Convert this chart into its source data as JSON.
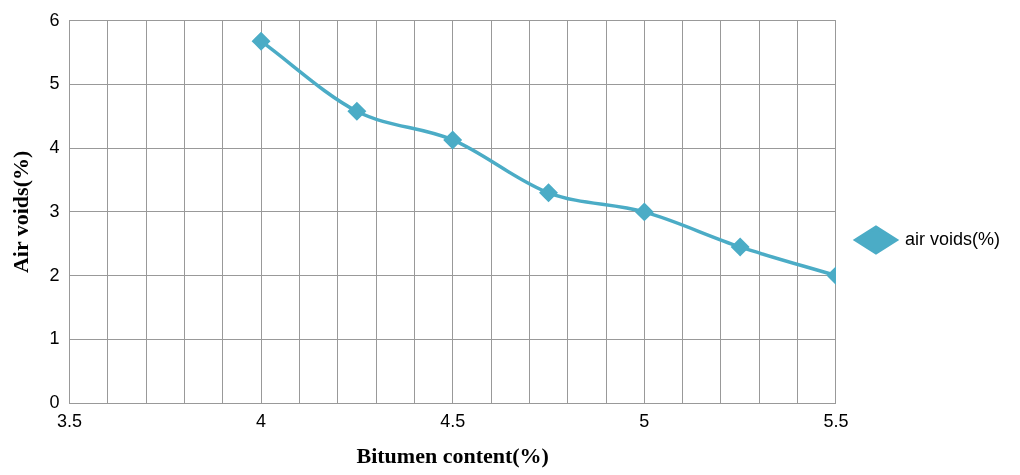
{
  "chart_data": {
    "type": "line",
    "xlabel": "Bitumen content(%)",
    "ylabel": "Air voids(%)",
    "x": [
      4,
      4.25,
      4.5,
      4.75,
      5,
      5.25,
      5.5
    ],
    "series": [
      {
        "name": "air voids(%)",
        "color": "#4bacc6",
        "values": [
          5.68,
          4.58,
          4.13,
          3.3,
          3.0,
          2.45,
          2.0
        ]
      }
    ],
    "xlim": [
      3.5,
      5.5
    ],
    "xticks": [
      3.5,
      {
        "value": 3.6,
        "label": null
      },
      {
        "value": 3.7,
        "label": null
      },
      {
        "value": 3.8,
        "label": null
      },
      {
        "value": 3.9,
        "label": null
      },
      4,
      {
        "value": 4.1,
        "label": null
      },
      {
        "value": 4.2,
        "label": null
      },
      {
        "value": 4.3,
        "label": null
      },
      {
        "value": 4.4,
        "label": null
      },
      4.5,
      {
        "value": 4.6,
        "label": null
      },
      {
        "value": 4.7,
        "label": null
      },
      {
        "value": 4.8,
        "label": null
      },
      {
        "value": 4.9,
        "label": null
      },
      5,
      {
        "value": 5.1,
        "label": null
      },
      {
        "value": 5.2,
        "label": null
      },
      {
        "value": 5.3,
        "label": null
      },
      {
        "value": 5.4,
        "label": null
      },
      5.5
    ],
    "ylim": [
      0,
      6
    ],
    "yticks": [
      0,
      1,
      2,
      3,
      4,
      5,
      6
    ],
    "grid": true,
    "legend": "right",
    "marker": "diamond",
    "line_style": "solid"
  }
}
